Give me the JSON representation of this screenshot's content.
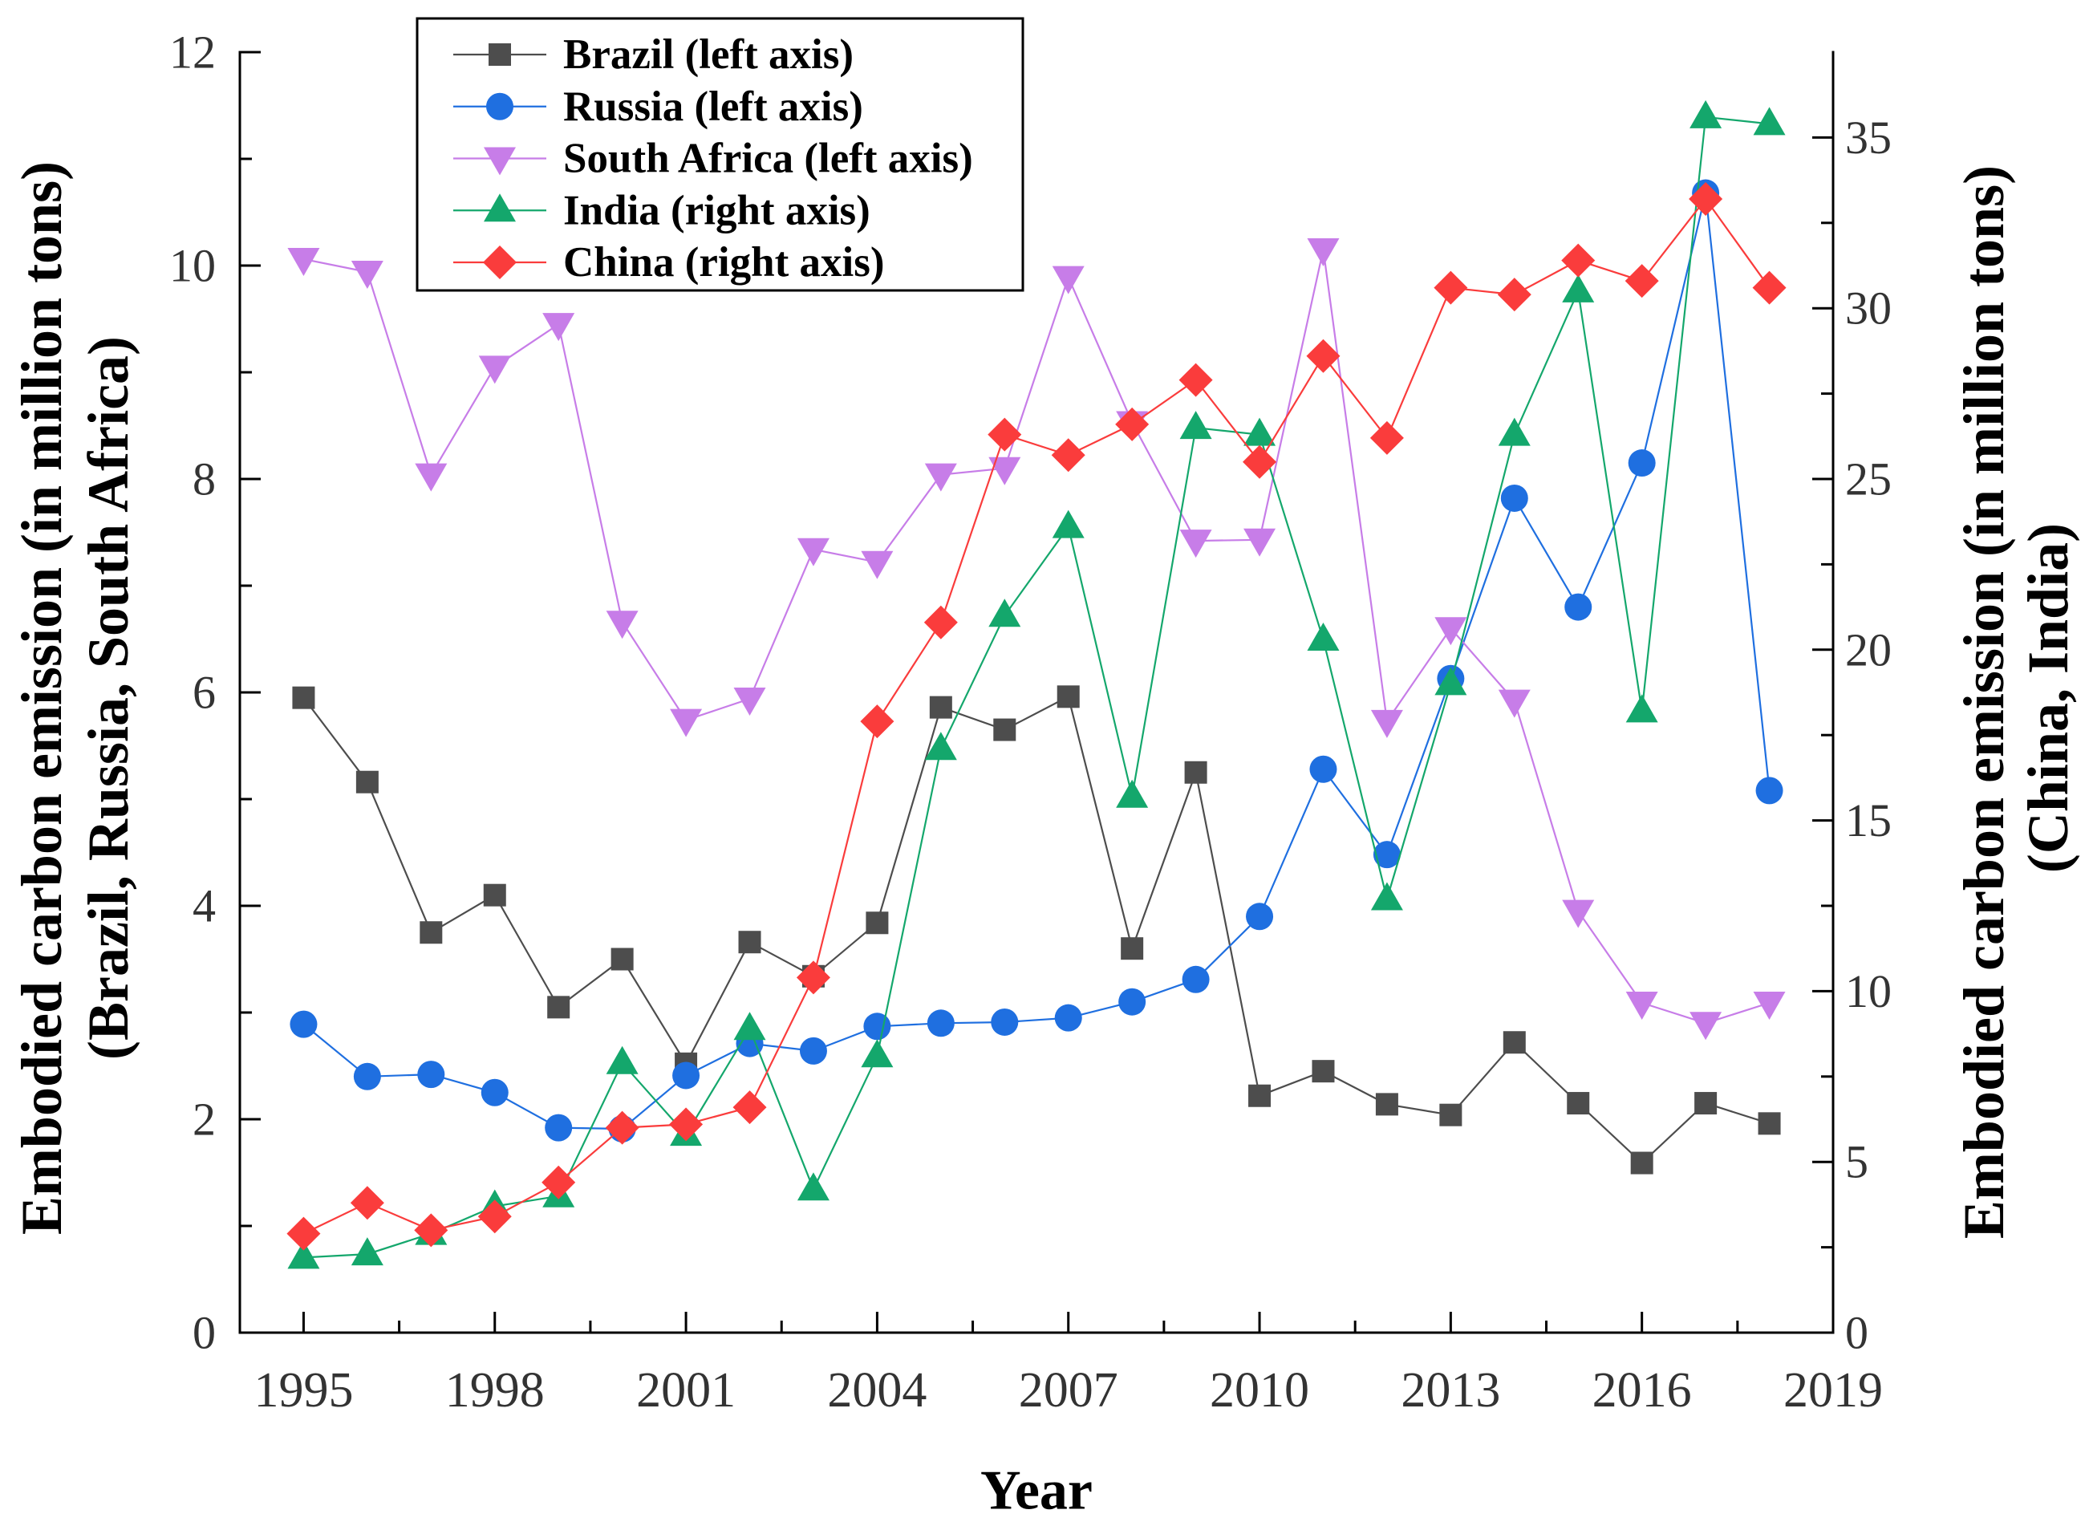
{
  "chart_data": {
    "type": "line",
    "xlabel": "Year",
    "ylabel_left": [
      "Embodied carbon emission (in million tons)",
      "(Brazil, Russia, South Africa)"
    ],
    "ylabel_right": [
      "Embodied carbon emission (in million tons)",
      "(China, India)"
    ],
    "xlim": [
      1994,
      2019
    ],
    "ylim_left": [
      0,
      12
    ],
    "ylim_right": [
      0,
      37.5
    ],
    "x_ticks": [
      1995,
      1998,
      2001,
      2004,
      2007,
      2010,
      2013,
      2016,
      2019
    ],
    "y_ticks_left": [
      0,
      2,
      4,
      6,
      8,
      10,
      12
    ],
    "y_ticks_right": [
      0,
      5,
      10,
      15,
      20,
      25,
      30,
      35
    ],
    "grid": false,
    "legend_position": "top-left",
    "x": [
      1995,
      1996,
      1997,
      1998,
      1999,
      2000,
      2001,
      2002,
      2003,
      2004,
      2005,
      2006,
      2007,
      2008,
      2009,
      2010,
      2011,
      2012,
      2013,
      2014,
      2015,
      2016,
      2017,
      2018
    ],
    "series": [
      {
        "name": "Brazil (left axis)",
        "axis": "left",
        "marker": "square",
        "color": "#4d4d4d",
        "values": [
          5.95,
          5.16,
          3.75,
          4.1,
          3.05,
          3.5,
          2.52,
          3.66,
          3.34,
          3.84,
          5.86,
          5.65,
          5.96,
          3.6,
          5.25,
          2.22,
          2.45,
          2.14,
          2.04,
          2.72,
          2.15,
          1.59,
          2.15,
          1.96
        ]
      },
      {
        "name": "Russia (left axis)",
        "axis": "left",
        "marker": "circle",
        "color": "#1f6fe0",
        "values": [
          2.89,
          2.4,
          2.42,
          2.25,
          1.92,
          1.91,
          2.41,
          2.71,
          2.64,
          2.87,
          2.9,
          2.91,
          2.95,
          3.1,
          3.31,
          3.9,
          5.28,
          4.48,
          6.13,
          7.82,
          6.8,
          8.15,
          10.68,
          5.08
        ]
      },
      {
        "name": "South Africa (left axis)",
        "axis": "left",
        "marker": "triangle-down",
        "color": "#c77de8",
        "values": [
          10.06,
          9.94,
          8.04,
          9.05,
          9.45,
          6.66,
          5.74,
          5.94,
          7.34,
          7.22,
          8.04,
          8.1,
          9.89,
          8.53,
          7.42,
          7.43,
          10.15,
          5.73,
          6.6,
          5.92,
          3.95,
          3.09,
          2.9,
          3.09
        ]
      },
      {
        "name": "India (right axis)",
        "axis": "right",
        "marker": "triangle-up",
        "color": "#14a76c",
        "values": [
          2.2,
          2.3,
          2.9,
          3.7,
          4.0,
          7.9,
          5.8,
          8.9,
          4.2,
          8.1,
          17.1,
          21.0,
          23.6,
          15.7,
          26.5,
          26.3,
          20.3,
          12.7,
          19.0,
          26.3,
          30.5,
          18.2,
          35.6,
          35.4
        ]
      },
      {
        "name": "China (right axis)",
        "axis": "right",
        "marker": "diamond",
        "color": "#fa3c3c",
        "values": [
          2.9,
          3.8,
          3.0,
          3.4,
          4.4,
          6.0,
          6.1,
          6.6,
          10.4,
          17.9,
          20.8,
          26.3,
          25.7,
          26.6,
          27.9,
          25.5,
          28.6,
          26.2,
          30.6,
          30.4,
          31.4,
          30.8,
          33.2,
          30.6
        ]
      }
    ]
  }
}
